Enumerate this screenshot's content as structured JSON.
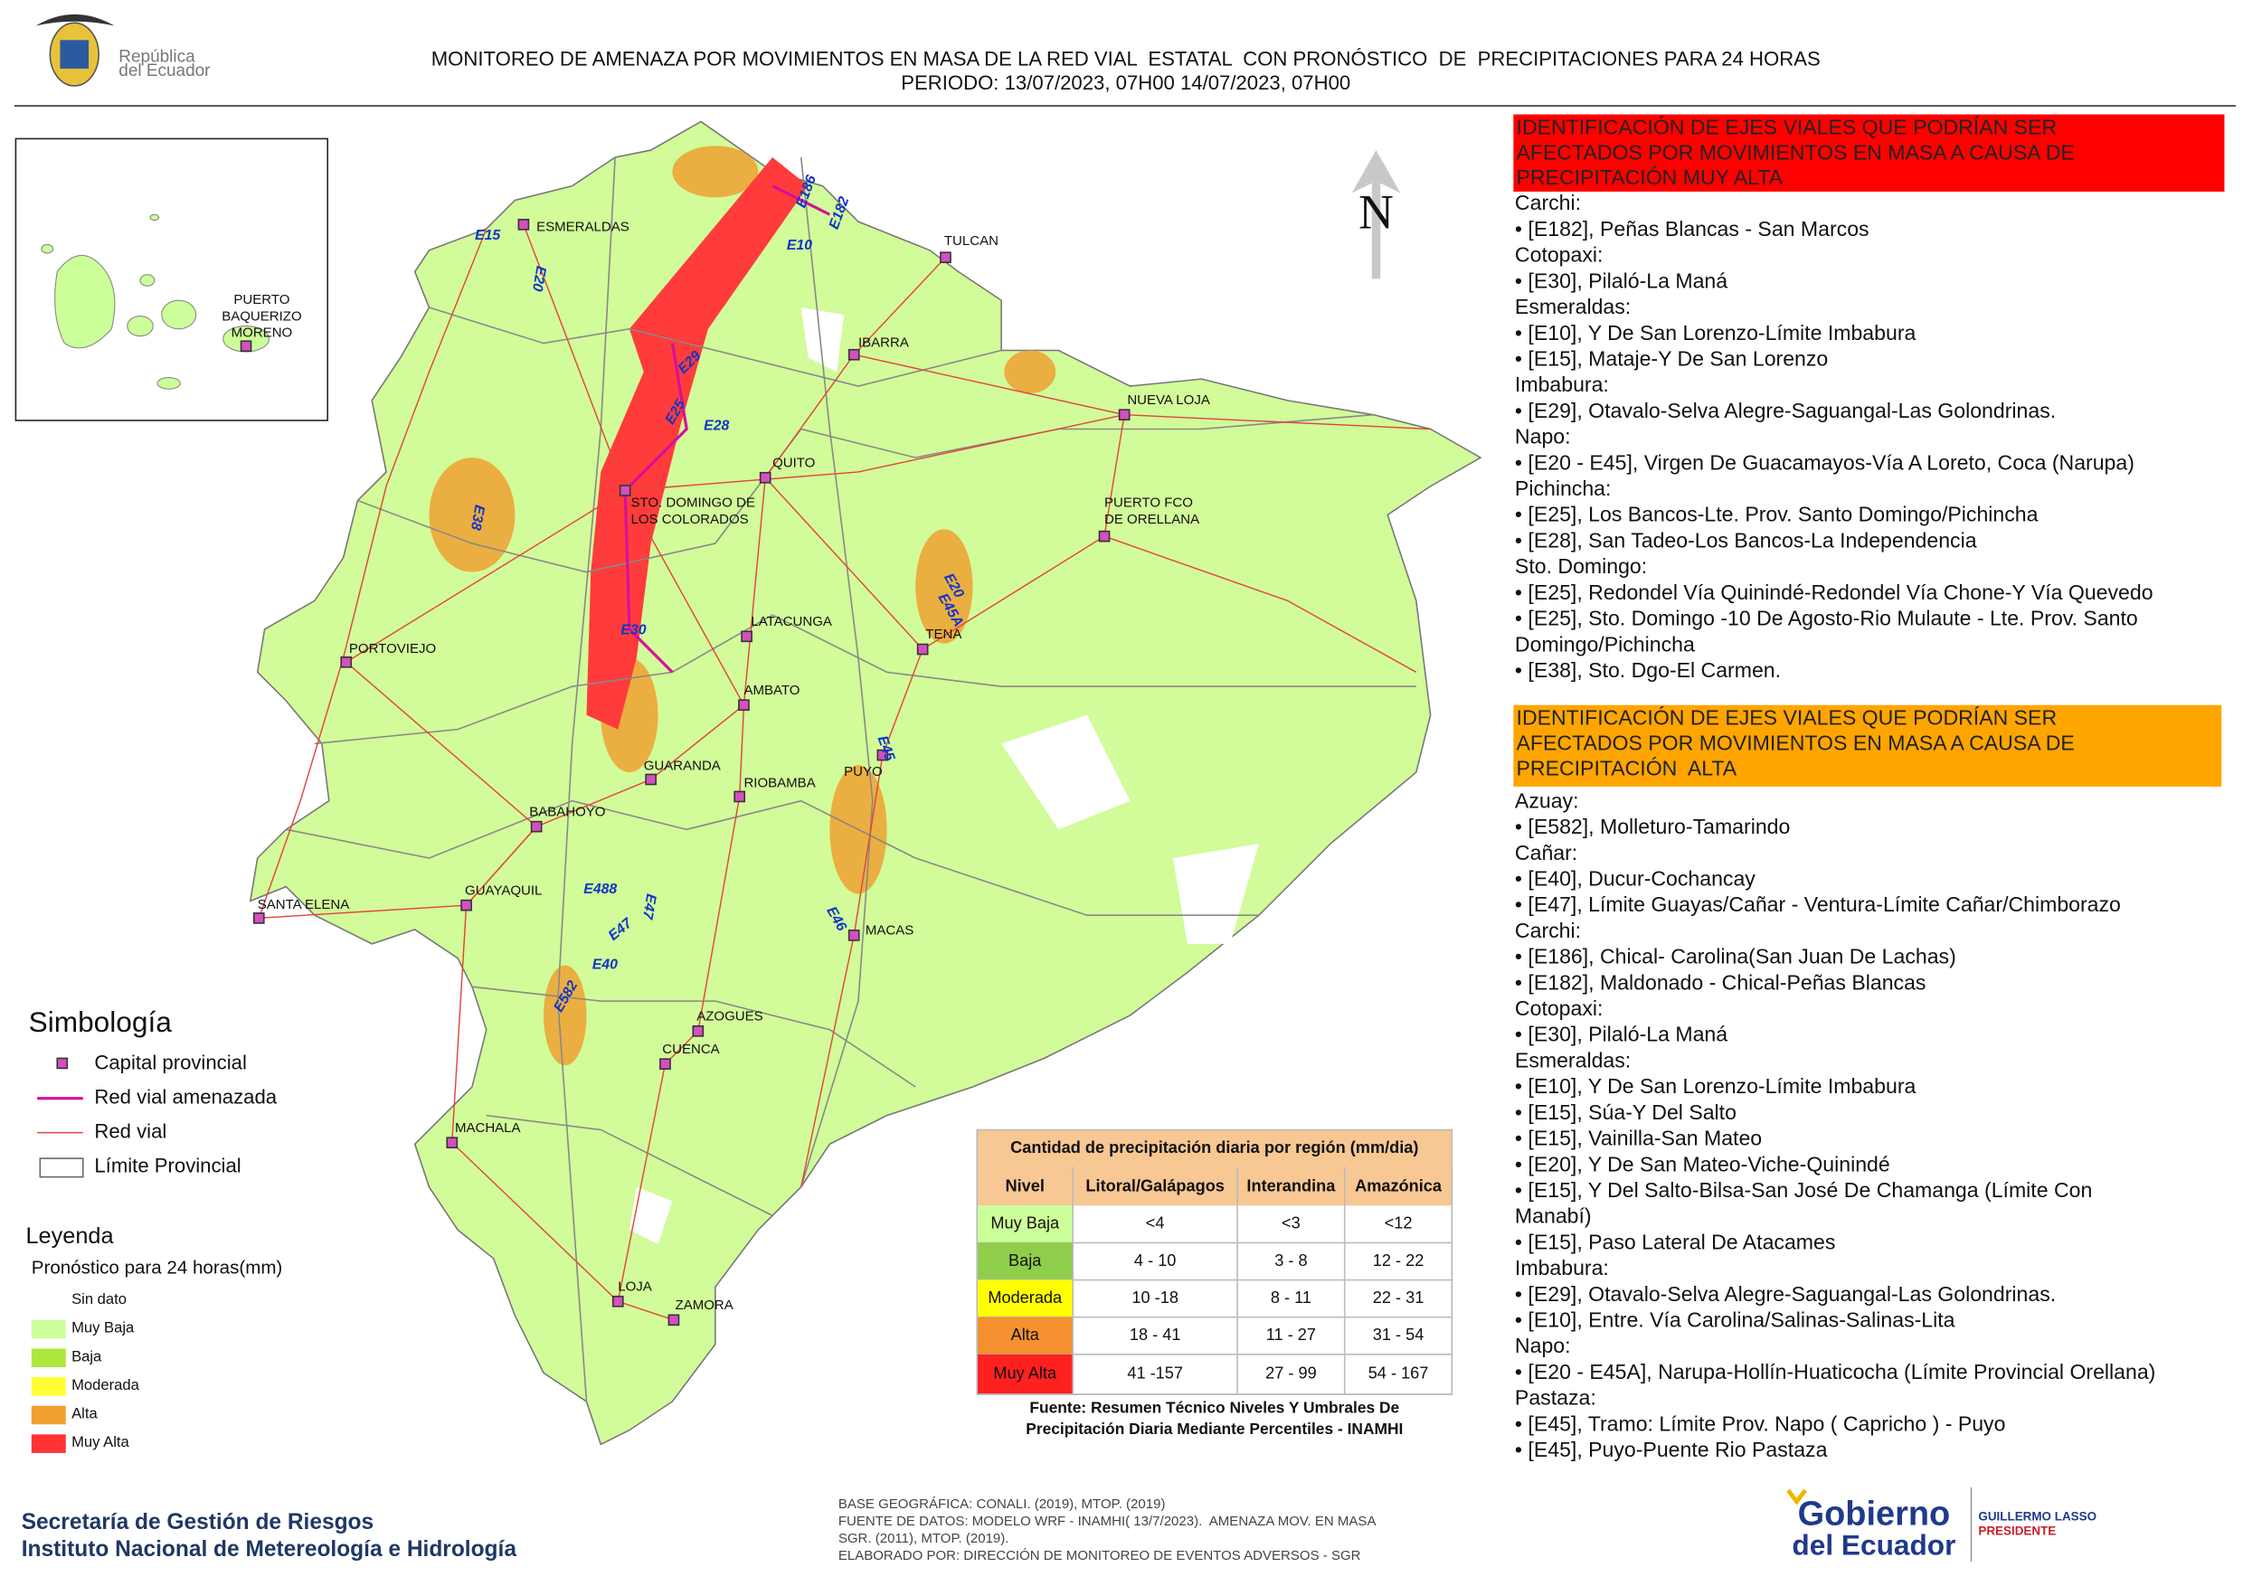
{
  "header": {
    "logo_text": [
      "República",
      "del Ecuador"
    ],
    "title": "MONITOREO DE AMENAZA POR MOVIMIENTOS EN MASA DE LA RED VIAL  ESTATAL  CON PRONÓSTICO  DE  PRECIPITACIONES PARA 24 HORAS",
    "period": "PERIODO: 13/07/2023, 07H00 14/07/2023, 07H00"
  },
  "map": {
    "north": "N",
    "cities": [
      [
        "ESMERALDAS"
      ],
      [
        "TULCAN"
      ],
      [
        "IBARRA"
      ],
      [
        "NUEVA LOJA"
      ],
      [
        "QUITO"
      ],
      [
        "STO. DOMINGO DE",
        "LOS COLORADOS"
      ],
      [
        "PUERTO FCO",
        "DE ORELLANA"
      ],
      [
        "LATACUNGA"
      ],
      [
        "TENA"
      ],
      [
        "PORTOVIEJO"
      ],
      [
        "AMBATO"
      ],
      [
        "GUARANDA"
      ],
      [
        "RIOBAMBA"
      ],
      [
        "PUYO"
      ],
      [
        "BABAHOYO"
      ],
      [
        "GUAYAQUIL"
      ],
      [
        "SANTA ELENA"
      ],
      [
        "MACAS"
      ],
      [
        "AZOGUES"
      ],
      [
        "CUENCA"
      ],
      [
        "MACHALA"
      ],
      [
        "LOJA"
      ],
      [
        "ZAMORA"
      ],
      [
        "PUERTO",
        "BAQUERIZO",
        "MORENO"
      ]
    ],
    "roads": [
      "E15",
      "E20",
      "E10",
      "E186",
      "E182",
      "E29",
      "E25",
      "E28",
      "E38",
      "E30",
      "E20",
      "E45A",
      "E45",
      "E488",
      "E47",
      "E47",
      "E40",
      "E46",
      "E582"
    ]
  },
  "symbology": {
    "title": "Simbología",
    "items": [
      "Capital provincial",
      "Red vial amenazada",
      "Red vial",
      "Límite Provincial"
    ]
  },
  "legend": {
    "title": "Leyenda",
    "subtitle": "Pronóstico para 24 horas(mm)",
    "classes": [
      "Sin dato",
      "Muy Baja",
      "Baja",
      "Moderada",
      "Alta",
      "Muy Alta"
    ]
  },
  "table": {
    "title": "Cantidad de precipitación diaria por región (mm/dia)",
    "headers": [
      "Nivel",
      "Litoral/Galápagos",
      "Interandina",
      "Amazónica"
    ],
    "rows": [
      [
        "Muy Baja",
        "<4",
        "<3",
        "<12"
      ],
      [
        "Baja",
        "4 - 10",
        "3 - 8",
        "12 - 22"
      ],
      [
        "Moderada",
        "10 -18",
        "8 - 11",
        "22 - 31"
      ],
      [
        "Alta",
        "18 - 41",
        "11 - 27",
        "31 - 54"
      ],
      [
        "Muy Alta",
        "41 -157",
        "27 - 99",
        "54 - 167"
      ]
    ],
    "source": [
      "Fuente: Resumen Técnico Niveles Y Umbrales De",
      "Precipitación Diaria Mediante Percentiles - INAMHI"
    ]
  },
  "panels": [
    {
      "heading": [
        "IDENTIFICACIÓN DE EJES VIALES QUE PODRÍAN SER",
        "AFECTADOS POR MOVIMIENTOS EN MASA A CAUSA DE",
        "PRECIPITACIÓN MUY ALTA"
      ],
      "lines": [
        "Carchi:",
        "• [E182], Peñas Blancas - San Marcos",
        "Cotopaxi:",
        "• [E30], Pilaló-La Maná",
        "Esmeraldas:",
        "• [E10], Y De San Lorenzo-Límite Imbabura",
        "• [E15], Mataje-Y De San Lorenzo",
        "Imbabura:",
        "• [E29], Otavalo-Selva Alegre-Saguangal-Las Golondrinas.",
        "Napo:",
        "• [E20 - E45], Virgen De Guacamayos-Vía A Loreto, Coca (Narupa)",
        "Pichincha:",
        "• [E25], Los Bancos-Lte. Prov. Santo Domingo/Pichincha",
        "• [E28], San Tadeo-Los Bancos-La Independencia",
        "Sto. Domingo:",
        "• [E25], Redondel Vía Quinindé-Redondel Vía Chone-Y Vía Quevedo",
        "• [E25], Sto. Domingo -10 De Agosto-Rio Mulaute - Lte. Prov. Santo",
        "Domingo/Pichincha",
        "• [E38], Sto. Dgo-El Carmen."
      ]
    },
    {
      "heading": [
        "IDENTIFICACIÓN DE EJES VIALES QUE PODRÍAN SER",
        "AFECTADOS POR MOVIMIENTOS EN MASA A CAUSA DE",
        "PRECIPITACIÓN  ALTA"
      ],
      "lines": [
        "Azuay:",
        "• [E582], Molleturo-Tamarindo",
        "Cañar:",
        "• [E40], Ducur-Cochancay",
        "• [E47], Límite Guayas/Cañar - Ventura-Límite Cañar/Chimborazo",
        "Carchi:",
        "• [E186], Chical- Carolina(San Juan De Lachas)",
        "• [E182], Maldonado - Chical-Peñas Blancas",
        "Cotopaxi:",
        "• [E30], Pilaló-La Maná",
        "Esmeraldas:",
        "• [E10], Y De San Lorenzo-Límite Imbabura",
        "• [E15], Súa-Y Del Salto",
        "• [E15], Vainilla-San Mateo",
        "• [E20], Y De San Mateo-Viche-Quinindé",
        "• [E15], Y Del Salto-Bilsa-San José De Chamanga (Límite Con",
        "Manabí)",
        "• [E15], Paso Lateral De Atacames",
        "Imbabura:",
        "• [E29], Otavalo-Selva Alegre-Saguangal-Las Golondrinas.",
        "• [E10], Entre. Vía Carolina/Salinas-Salinas-Lita",
        "Napo:",
        "• [E20 - E45A], Narupa-Hollín-Huaticocha (Límite Provincial Orellana)",
        "Pastaza:",
        "• [E45], Tramo: Límite Prov. Napo ( Capricho ) - Puyo",
        "• [E45], Puyo-Puente Rio Pastaza"
      ]
    }
  ],
  "footer": {
    "organizations": [
      "Secretaría de Gestión de Riesgos",
      "Instituto Nacional de Metereología e Hidrología"
    ],
    "credits": [
      "BASE GEOGRÁFICA: CONALI. (2019), MTOP. (2019)",
      "FUENTE DE DATOS: MODELO WRF - INAMHI( 13/7/2023).  AMENAZA MOV. EN MASA",
      "SGR. (2011), MTOP. (2019).",
      "ELABORADO POR: DIRECCIÓN DE MONITOREO DE EVENTOS ADVERSOS - SGR"
    ],
    "government": [
      "Gobierno",
      "del Ecuador"
    ],
    "president": [
      "GUILLERMO LASSO",
      "PRESIDENTE"
    ]
  }
}
